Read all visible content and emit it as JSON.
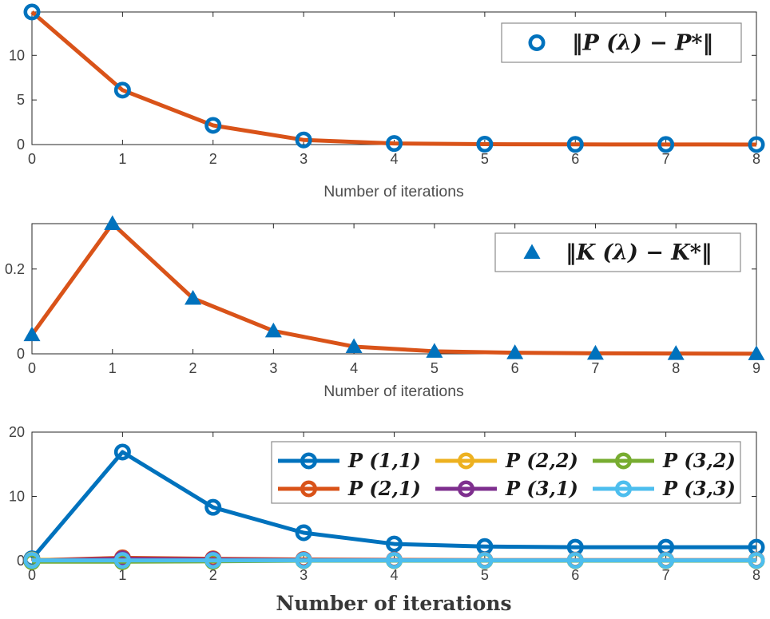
{
  "figure": {
    "background": "#ffffff",
    "axis_color": "#262626",
    "tick_label_color": "#404040",
    "legend_border_color": "#8c8c8c"
  },
  "chart_data": [
    {
      "type": "line",
      "xlabel": "Number of iterations",
      "x": [
        0,
        1,
        2,
        3,
        4,
        5,
        6,
        7,
        8
      ],
      "xticks": [
        "0",
        "1",
        "2",
        "3",
        "4",
        "5",
        "6",
        "7",
        "8"
      ],
      "ylim": [
        0,
        14.86
      ],
      "yticks": [
        {
          "v": 0,
          "label": "0"
        },
        {
          "v": 5,
          "label": "5"
        },
        {
          "v": 10,
          "label": "10"
        }
      ],
      "grid": false,
      "legend_position": "top-right",
      "series": [
        {
          "name": "‖P (λ) − P*‖",
          "marker": "circle",
          "marker_color": "#0072BD",
          "line_color": "#D95319",
          "values": [
            14.86,
            6.1,
            2.15,
            0.52,
            0.12,
            0.04,
            0.02,
            0.01,
            0.005
          ]
        }
      ]
    },
    {
      "type": "line",
      "xlabel": "Number of iterations",
      "x": [
        0,
        1,
        2,
        3,
        4,
        5,
        6,
        7,
        8,
        9
      ],
      "xticks": [
        "0",
        "1",
        "2",
        "3",
        "4",
        "5",
        "6",
        "7",
        "8",
        "9"
      ],
      "ylim": [
        0,
        0.307
      ],
      "yticks": [
        {
          "v": 0,
          "label": "0"
        },
        {
          "v": 0.2,
          "label": "0.2"
        }
      ],
      "grid": false,
      "legend_position": "top-right",
      "series": [
        {
          "name": "‖K (λ) − K*‖",
          "marker": "triangle",
          "marker_color": "#0072BD",
          "line_color": "#D95319",
          "values": [
            0.045,
            0.307,
            0.131,
            0.054,
            0.017,
            0.006,
            0.0025,
            0.0012,
            0.0006,
            0.0003
          ]
        }
      ]
    },
    {
      "type": "line",
      "xlabel": "Number of iterations",
      "x": [
        0,
        1,
        2,
        3,
        4,
        5,
        6,
        7,
        8
      ],
      "xticks": [
        "0",
        "1",
        "2",
        "3",
        "4",
        "5",
        "6",
        "7",
        "8"
      ],
      "ylim": [
        0,
        20
      ],
      "yticks": [
        {
          "v": 0,
          "label": "0"
        },
        {
          "v": 10,
          "label": "10"
        },
        {
          "v": 20,
          "label": "20"
        }
      ],
      "grid": false,
      "legend_position": "top-right",
      "legend_columns": 3,
      "series": [
        {
          "name": "P (1,1)",
          "marker": "circle",
          "marker_color": "#0072BD",
          "line_color": "#0072BD",
          "values": [
            0.3,
            16.9,
            8.3,
            4.35,
            2.6,
            2.2,
            2.1,
            2.1,
            2.1
          ]
        },
        {
          "name": "P (2,1)",
          "marker": "circle",
          "marker_color": "#D95319",
          "line_color": "#D95319",
          "values": [
            0.05,
            0.45,
            0.3,
            0.18,
            0.12,
            0.1,
            0.1,
            0.1,
            0.1
          ]
        },
        {
          "name": "P (2,2)",
          "marker": "circle",
          "marker_color": "#EDB120",
          "line_color": "#EDB120",
          "values": [
            0.12,
            0.2,
            0.12,
            0.08,
            0.06,
            0.05,
            0.05,
            0.05,
            0.05
          ]
        },
        {
          "name": "P (3,1)",
          "marker": "circle",
          "marker_color": "#7E2F8E",
          "line_color": "#7E2F8E",
          "values": [
            0.02,
            0.3,
            0.18,
            0.1,
            0.07,
            0.05,
            0.05,
            0.05,
            0.05
          ]
        },
        {
          "name": "P (3,2)",
          "marker": "circle",
          "marker_color": "#77AC30",
          "line_color": "#77AC30",
          "values": [
            -0.15,
            -0.15,
            -0.1,
            0.0,
            0.0,
            0.0,
            0.0,
            0.0,
            0.0
          ]
        },
        {
          "name": "P (3,3)",
          "marker": "circle",
          "marker_color": "#4DBEEE",
          "line_color": "#4DBEEE",
          "values": [
            0.05,
            0.05,
            0.05,
            0.05,
            0.05,
            0.05,
            0.05,
            0.05,
            0.05
          ]
        }
      ]
    }
  ]
}
